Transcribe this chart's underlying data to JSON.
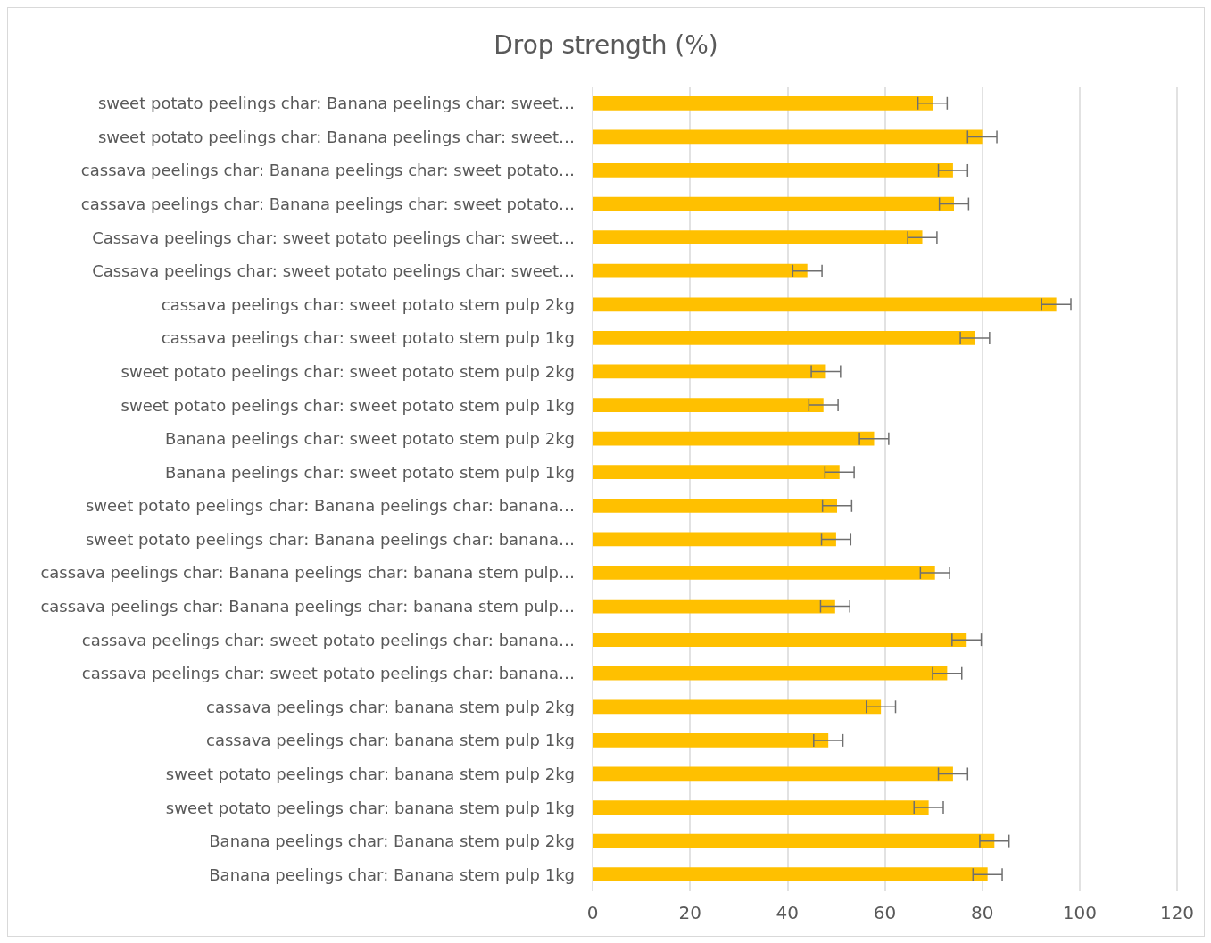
{
  "chart_data": {
    "type": "bar",
    "orientation": "horizontal",
    "title": "Drop strength (%)",
    "categories": [
      "sweet potato peelings char: Banana peelings char: sweet…",
      "sweet potato peelings char: Banana peelings char: sweet…",
      "cassava peelings char: Banana peelings char: sweet potato…",
      "cassava peelings char: Banana peelings char: sweet potato…",
      "Cassava peelings char: sweet potato peelings char: sweet…",
      "Cassava peelings char: sweet potato peelings char: sweet…",
      "cassava peelings char: sweet potato stem pulp 2kg",
      "cassava peelings char: sweet potato stem pulp 1kg",
      "sweet potato peelings char: sweet potato stem pulp 2kg",
      "sweet potato peelings char: sweet potato stem pulp 1kg",
      "Banana peelings char: sweet potato stem pulp 2kg",
      "Banana peelings char: sweet potato stem pulp 1kg",
      "sweet potato peelings char: Banana peelings char: banana…",
      "sweet potato peelings char: Banana peelings char: banana…",
      "cassava peelings char: Banana peelings char: banana stem pulp…",
      "cassava peelings char: Banana peelings char: banana stem pulp…",
      "cassava peelings char: sweet potato peelings char: banana…",
      "cassava peelings char: sweet potato peelings char: banana…",
      "cassava peelings char: banana stem pulp 2kg",
      "cassava peelings char: banana stem pulp 1kg",
      "sweet potato peelings char: banana stem pulp 2kg",
      "sweet potato peelings char: banana stem pulp 1kg",
      "Banana peelings char: Banana stem pulp 2kg",
      "Banana peelings char: Banana stem pulp 1kg"
    ],
    "values": [
      69.8,
      80.0,
      74.0,
      74.2,
      67.7,
      44.1,
      95.2,
      78.5,
      47.9,
      47.4,
      57.8,
      50.7,
      50.2,
      50.0,
      70.3,
      49.8,
      76.8,
      72.8,
      59.2,
      48.4,
      74.0,
      69.0,
      82.5,
      81.1
    ],
    "errors": [
      3,
      3,
      3,
      3,
      3,
      3,
      3,
      3,
      3,
      3,
      3,
      3,
      3,
      3,
      3,
      3,
      3,
      3,
      3,
      3,
      3,
      3,
      3,
      3
    ],
    "color": "#ffc000",
    "xlim": [
      0,
      120
    ],
    "xticks": [
      0,
      20,
      40,
      60,
      80,
      100,
      120
    ],
    "grid": "x"
  }
}
